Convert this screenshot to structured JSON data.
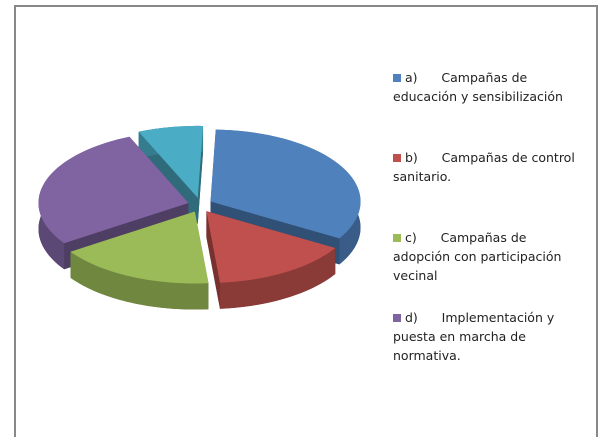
{
  "chart_data": {
    "type": "pie",
    "categories": [
      "a)      Campañas de educación y sensibilización",
      "b)      Campañas de control sanitario.",
      "c)      Campañas de adopción con participación vecinal",
      "d)      Implementación y puesta en marcha de normativa.",
      null
    ],
    "values": [
      33,
      15,
      17,
      28,
      7
    ],
    "colors": [
      "#4f81bd",
      "#c0504d",
      "#9bbb59",
      "#8064a2",
      "#4bacc6"
    ],
    "legend": "right"
  }
}
